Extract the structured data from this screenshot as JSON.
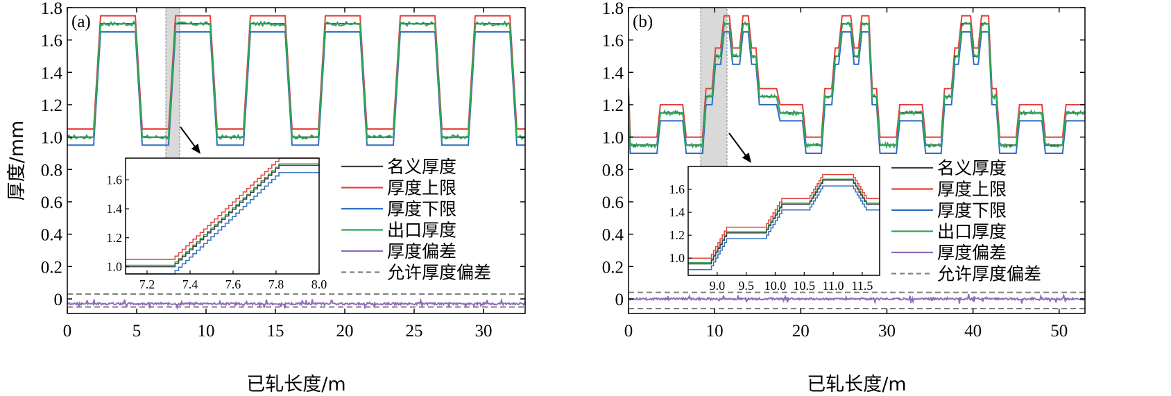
{
  "colors": {
    "nominal": "#404040",
    "upper": "#e8413c",
    "lower": "#2f6fc4",
    "exit": "#2ea85a",
    "deviation": "#8f6bb8",
    "allowed": "#808080"
  },
  "chart_data": [
    {
      "type": "line",
      "panel_label": "(a)",
      "xlabel": "已轧长度/m",
      "ylabel": "厚度/mm",
      "xlim": [
        0,
        33
      ],
      "ylim": [
        -0.09,
        1.8
      ],
      "xticks": [
        "0",
        "5",
        "10",
        "15",
        "20",
        "25",
        "30"
      ],
      "yticks": [
        "0",
        "0.2",
        "0.4",
        "0.6",
        "0.8",
        "1.0",
        "1.2",
        "1.4",
        "1.6",
        "1.8"
      ],
      "legend": [
        "名义厚度",
        "厚度上限",
        "厚度下限",
        "出口厚度",
        "厚度偏差",
        "允许厚度偏差"
      ],
      "legend_position": "center-right",
      "nominal_profile": {
        "x": [
          0,
          1.9,
          2.4,
          4.9,
          5.4,
          7.3,
          7.8,
          10.3,
          10.8,
          12.7,
          13.2,
          15.7,
          16.2,
          18.1,
          18.6,
          21.1,
          21.6,
          23.5,
          24.0,
          26.5,
          27.0,
          28.9,
          29.4,
          31.9,
          32.4,
          33
        ],
        "y": [
          1.0,
          1.0,
          1.7,
          1.7,
          1.0,
          1.0,
          1.7,
          1.7,
          1.0,
          1.0,
          1.7,
          1.7,
          1.0,
          1.0,
          1.7,
          1.7,
          1.0,
          1.0,
          1.7,
          1.7,
          1.0,
          1.0,
          1.7,
          1.7,
          1.0,
          1.0
        ]
      },
      "upper_offset": 0.05,
      "lower_offset": -0.05,
      "exit_thickness": "tracks nominal within ±0.02",
      "deviation_mean": -0.03,
      "allowed_deviation": [
        -0.05,
        0.03
      ],
      "highlight_region": [
        7.1,
        8.0
      ],
      "inset": {
        "xlim": [
          7.1,
          8.0
        ],
        "ylim": [
          0.95,
          1.75
        ],
        "xticks": [
          "7.2",
          "7.4",
          "7.6",
          "7.8",
          "8.0"
        ],
        "yticks": [
          "1.0",
          "1.2",
          "1.4",
          "1.6"
        ]
      }
    },
    {
      "type": "line",
      "panel_label": "(b)",
      "xlabel": "已轧长度/m",
      "ylabel": "",
      "xlim": [
        0,
        53
      ],
      "ylim": [
        -0.09,
        1.8
      ],
      "xticks": [
        "0",
        "10",
        "20",
        "30",
        "40",
        "50"
      ],
      "yticks": [
        "0",
        "0.2",
        "0.4",
        "0.6",
        "0.8",
        "1.0",
        "1.2",
        "1.4",
        "1.6",
        "1.8"
      ],
      "legend": [
        "名义厚度",
        "厚度上限",
        "厚度下限",
        "出口厚度",
        "厚度偏差",
        "允许厚度偏差"
      ],
      "legend_position": "center-right",
      "nominal_profile": {
        "x": [
          0,
          0.2,
          3.3,
          3.7,
          6.3,
          6.7,
          8.6,
          9.0,
          9.7,
          10.1,
          10.7,
          11.1,
          11.7,
          12.1,
          12.9,
          13.3,
          13.9,
          14.3,
          14.8,
          15.2,
          17.2,
          17.6,
          20.2,
          20.6,
          22.4,
          22.8,
          23.6,
          24.0,
          24.4,
          24.8,
          25.8,
          26.2,
          26.7,
          27.1,
          27.9,
          28.3,
          28.8,
          29.2,
          31.1,
          31.5,
          34.1,
          34.5,
          36.3,
          36.7,
          37.5,
          37.9,
          38.3,
          38.7,
          39.7,
          40.1,
          40.6,
          41.0,
          41.8,
          42.2,
          42.7,
          43.1,
          45.0,
          45.4,
          48.0,
          48.4,
          50.4,
          50.8,
          53
        ],
        "y": [
          1.25,
          0.95,
          0.95,
          1.15,
          1.15,
          0.95,
          0.95,
          1.25,
          1.25,
          1.5,
          1.5,
          1.7,
          1.7,
          1.5,
          1.5,
          1.7,
          1.7,
          1.5,
          1.5,
          1.25,
          1.25,
          1.15,
          1.15,
          0.95,
          0.95,
          1.25,
          1.25,
          1.5,
          1.5,
          1.7,
          1.7,
          1.5,
          1.5,
          1.7,
          1.7,
          1.25,
          1.25,
          0.95,
          0.95,
          1.15,
          1.15,
          0.95,
          0.95,
          1.25,
          1.25,
          1.5,
          1.5,
          1.7,
          1.7,
          1.5,
          1.5,
          1.7,
          1.7,
          1.25,
          1.25,
          0.95,
          0.95,
          1.15,
          1.15,
          0.95,
          0.95,
          1.15,
          1.15
        ]
      },
      "upper_offset": 0.05,
      "lower_offset": -0.05,
      "exit_thickness": "tracks nominal within ±0.02",
      "deviation_mean": 0.0,
      "allowed_deviation": [
        -0.06,
        0.04
      ],
      "highlight_region": [
        8.5,
        11.5
      ],
      "inset": {
        "xlim": [
          8.5,
          11.8
        ],
        "ylim": [
          0.85,
          1.8
        ],
        "xticks": [
          "9.0",
          "9.5",
          "10.0",
          "10.5",
          "11.0",
          "11.5"
        ],
        "yticks": [
          "1.0",
          "1.2",
          "1.4",
          "1.6"
        ]
      }
    }
  ]
}
